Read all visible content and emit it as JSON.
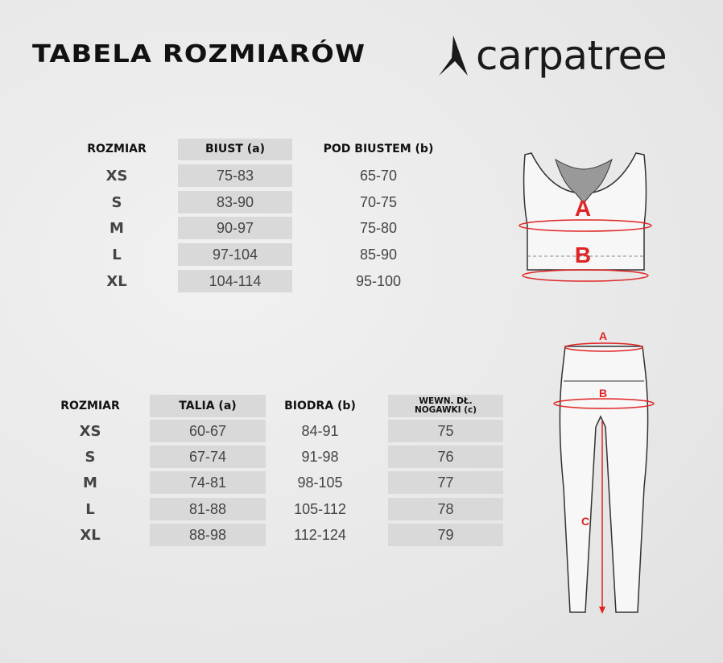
{
  "title": "TABELA ROZMIARÓW",
  "logo": {
    "text": "carpatree"
  },
  "colors": {
    "cell_bg": "#d9d9d9",
    "marker": "#e02424"
  },
  "top_table": {
    "headers": [
      "ROZMIAR",
      "BIUST (a)",
      "POD BIUSTEM (b)"
    ],
    "rows": [
      [
        "XS",
        "75-83",
        "65-70"
      ],
      [
        "S",
        "83-90",
        "70-75"
      ],
      [
        "M",
        "90-97",
        "75-80"
      ],
      [
        "L",
        "97-104",
        "85-90"
      ],
      [
        "XL",
        "104-114",
        "95-100"
      ]
    ]
  },
  "bottom_table": {
    "headers": [
      "ROZMIAR",
      "TALIA (a)",
      "BIODRA (b)",
      "WEWN. DŁ. NOGAWKI (c)"
    ],
    "rows": [
      [
        "XS",
        "60-67",
        "84-91",
        "75"
      ],
      [
        "S",
        "67-74",
        "91-98",
        "76"
      ],
      [
        "M",
        "74-81",
        "98-105",
        "77"
      ],
      [
        "L",
        "81-88",
        "105-112",
        "78"
      ],
      [
        "XL",
        "88-98",
        "112-124",
        "79"
      ]
    ]
  },
  "bra_labels": {
    "a": "A",
    "b": "B"
  },
  "leggings_labels": {
    "a": "A",
    "b": "B",
    "c": "C"
  }
}
